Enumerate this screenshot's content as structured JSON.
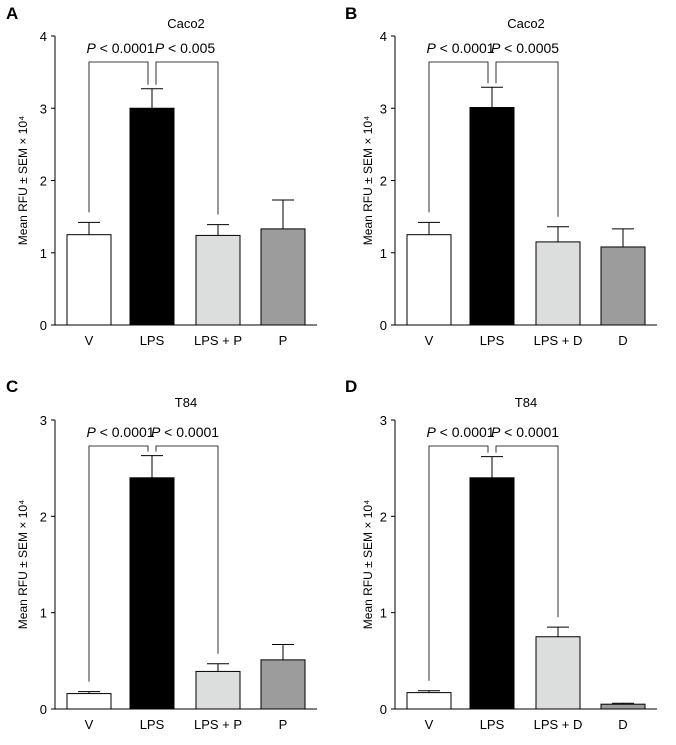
{
  "figure": {
    "colors": {
      "V": "#ffffff",
      "LPS": "#000000",
      "LPS + P": "#dcdedd",
      "LPS + D": "#dcdedd",
      "P": "#9c9c9c",
      "D": "#9c9c9c",
      "axis": "#000000"
    }
  },
  "chart_data": [
    {
      "panel": "A",
      "type": "bar",
      "title": "Caco2",
      "ylabel": "Mean RFU ± SEM × 10⁴",
      "xlabel": "",
      "categories": [
        "V",
        "LPS",
        "LPS + P",
        "P"
      ],
      "values": [
        1.25,
        3.0,
        1.24,
        1.33
      ],
      "errors": [
        0.17,
        0.27,
        0.15,
        0.4
      ],
      "ylim": [
        0,
        4
      ],
      "yticks": [
        "0",
        "1",
        "2",
        "3",
        "4"
      ],
      "grid": false,
      "comparisons": [
        {
          "from": 0,
          "to": 1,
          "p_label": "P",
          "p_text": " < 0.0001"
        },
        {
          "from": 1,
          "to": 2,
          "p_label": "P",
          "p_text": " < 0.005"
        }
      ]
    },
    {
      "panel": "B",
      "type": "bar",
      "title": "Caco2",
      "ylabel": "Mean RFU ± SEM × 10⁴",
      "xlabel": "",
      "categories": [
        "V",
        "LPS",
        "LPS + D",
        "D"
      ],
      "values": [
        1.25,
        3.01,
        1.15,
        1.08
      ],
      "errors": [
        0.17,
        0.28,
        0.21,
        0.25
      ],
      "ylim": [
        0,
        4
      ],
      "yticks": [
        "0",
        "1",
        "2",
        "3",
        "4"
      ],
      "grid": false,
      "comparisons": [
        {
          "from": 0,
          "to": 1,
          "p_label": "P",
          "p_text": " < 0.0001"
        },
        {
          "from": 1,
          "to": 2,
          "p_label": "P",
          "p_text": " < 0.0005"
        }
      ]
    },
    {
      "panel": "C",
      "type": "bar",
      "title": "T84",
      "ylabel": "Mean RFU ± SEM × 10⁴",
      "xlabel": "",
      "categories": [
        "V",
        "LPS",
        "LPS + P",
        "P"
      ],
      "values": [
        0.16,
        2.4,
        0.39,
        0.51
      ],
      "errors": [
        0.02,
        0.23,
        0.08,
        0.16
      ],
      "ylim": [
        0,
        3
      ],
      "yticks": [
        "0",
        "1",
        "2",
        "3"
      ],
      "grid": false,
      "comparisons": [
        {
          "from": 0,
          "to": 1,
          "p_label": "P",
          "p_text": " < 0.0001"
        },
        {
          "from": 1,
          "to": 2,
          "p_label": "P",
          "p_text": " < 0.0001"
        }
      ]
    },
    {
      "panel": "D",
      "type": "bar",
      "title": "T84",
      "ylabel": "Mean RFU ± SEM × 10⁴",
      "xlabel": "",
      "categories": [
        "V",
        "LPS",
        "LPS + D",
        "D"
      ],
      "values": [
        0.17,
        2.4,
        0.75,
        0.05
      ],
      "errors": [
        0.02,
        0.22,
        0.1,
        0.01
      ],
      "ylim": [
        0,
        3
      ],
      "yticks": [
        "0",
        "1",
        "2",
        "3"
      ],
      "grid": false,
      "comparisons": [
        {
          "from": 0,
          "to": 1,
          "p_label": "P",
          "p_text": " < 0.0001"
        },
        {
          "from": 1,
          "to": 2,
          "p_label": "P",
          "p_text": " < 0.0001"
        }
      ]
    }
  ]
}
